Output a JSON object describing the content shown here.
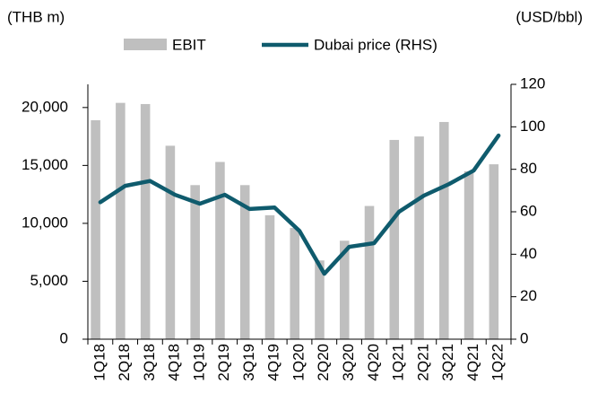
{
  "chart_data": {
    "type": "bar-line",
    "y_label": "(THB m)",
    "y2_label": "(USD/bbl)",
    "categories": [
      "1Q18",
      "2Q18",
      "3Q18",
      "4Q18",
      "1Q19",
      "2Q19",
      "3Q19",
      "4Q19",
      "1Q20",
      "2Q20",
      "3Q20",
      "4Q20",
      "1Q21",
      "2Q21",
      "3Q21",
      "4Q21",
      "1Q22"
    ],
    "series": [
      {
        "name": "EBIT",
        "type": "bar",
        "color": "#bfbfbf",
        "values": [
          18900,
          20400,
          20300,
          16700,
          13300,
          15300,
          13300,
          10700,
          9600,
          6800,
          8500,
          11500,
          17200,
          17500,
          18750,
          14500,
          15100
        ]
      },
      {
        "name": "Dubai price (RHS)",
        "type": "line",
        "axis": "y2",
        "color": "#0f5b6d",
        "values": [
          64.5,
          72.2,
          74.5,
          68,
          63.8,
          68,
          61.3,
          62,
          51,
          30.8,
          43.5,
          45.2,
          60,
          67.6,
          73,
          79.4,
          95.9
        ]
      }
    ],
    "ylim": [
      0,
      22000
    ],
    "yticks": [
      0,
      {
        "value": 5000,
        "label": "5,000"
      },
      {
        "value": 10000,
        "label": "10,000"
      },
      {
        "value": 15000,
        "label": "15,000"
      },
      {
        "value": 20000,
        "label": "20,000"
      }
    ],
    "y2lim": [
      0,
      120
    ],
    "y2ticks": [
      0,
      20,
      40,
      60,
      80,
      100,
      120
    ],
    "legend": "top"
  }
}
